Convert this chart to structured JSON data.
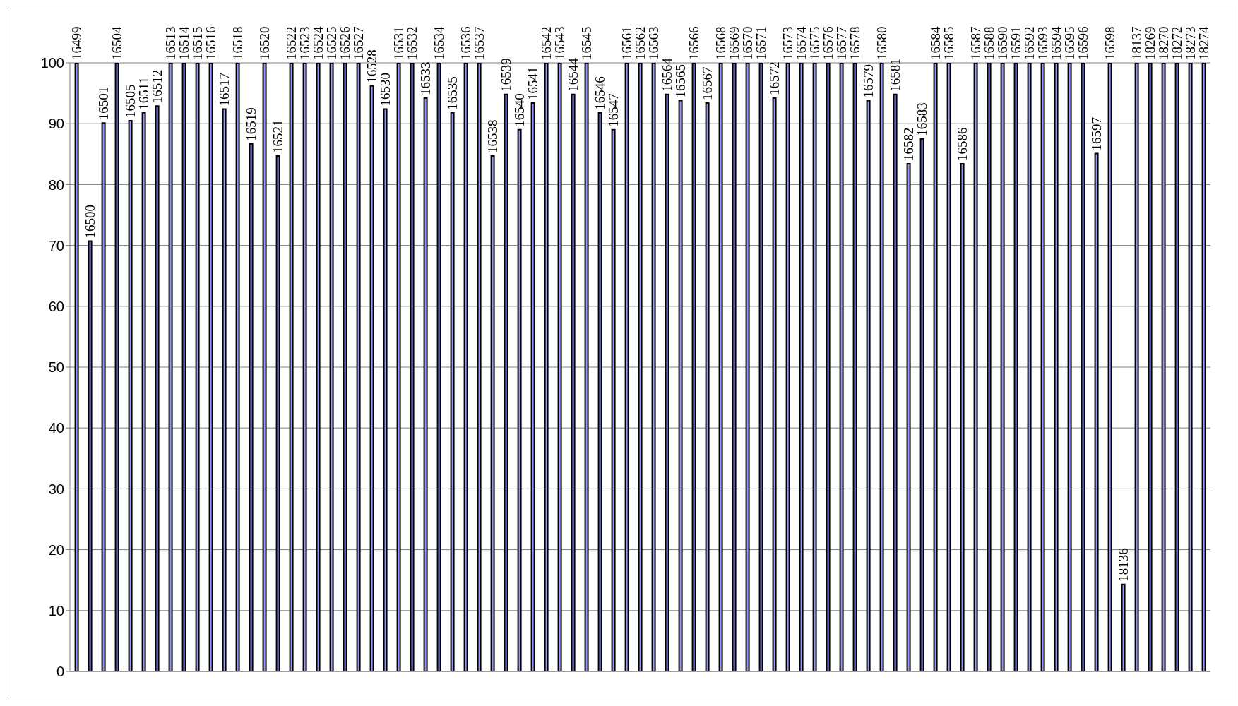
{
  "chart_data": {
    "type": "bar",
    "categories": [
      "16499",
      "16500",
      "16501",
      "16504",
      "16505",
      "16511",
      "16512",
      "16513",
      "16514",
      "16515",
      "16516",
      "16517",
      "16518",
      "16519",
      "16520",
      "16521",
      "16522",
      "16523",
      "16524",
      "16525",
      "16526",
      "16527",
      "16528",
      "16530",
      "16531",
      "16532",
      "16533",
      "16534",
      "16535",
      "16536",
      "16537",
      "16538",
      "16539",
      "16540",
      "16541",
      "16542",
      "16543",
      "16544",
      "16545",
      "16546",
      "16547",
      "16561",
      "16562",
      "16563",
      "16564",
      "16565",
      "16566",
      "16567",
      "16568",
      "16569",
      "16570",
      "16571",
      "16572",
      "16573",
      "16574",
      "16575",
      "16576",
      "16577",
      "16578",
      "16579",
      "16580",
      "16581",
      "16582",
      "16583",
      "16584",
      "16585",
      "16586",
      "16587",
      "16588",
      "16590",
      "16591",
      "16592",
      "16593",
      "16594",
      "16595",
      "16596",
      "16597",
      "16598",
      "18136",
      "18137",
      "18269",
      "18270",
      "18272",
      "18273",
      "18274"
    ],
    "values": [
      100,
      70.7,
      90.1,
      100,
      90.5,
      91.8,
      92.9,
      100,
      100,
      100,
      100,
      92.4,
      100,
      86.7,
      100,
      84.7,
      100,
      100,
      100,
      100,
      100,
      100,
      96.2,
      92.4,
      100,
      100,
      94.2,
      100,
      91.8,
      100,
      100,
      84.7,
      94.8,
      89,
      93.4,
      100,
      100,
      94.8,
      100,
      91.8,
      89,
      100,
      100,
      100,
      94.8,
      93.8,
      100,
      93.4,
      100,
      100,
      100,
      100,
      94.2,
      100,
      100,
      100,
      100,
      100,
      100,
      93.8,
      100,
      94.8,
      83.4,
      87.5,
      100,
      100,
      83.4,
      100,
      100,
      100,
      100,
      100,
      100,
      100,
      100,
      100,
      85.1,
      100,
      14.3,
      100,
      100,
      100,
      100,
      100,
      100
    ],
    "color": "#9999ff",
    "ylim": [
      0,
      100
    ],
    "yticks": [
      0,
      10,
      20,
      30,
      40,
      50,
      60,
      70,
      80,
      90,
      100
    ],
    "grid": "y"
  }
}
